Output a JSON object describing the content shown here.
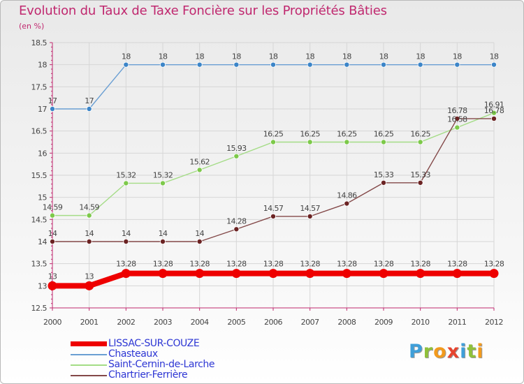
{
  "header": {
    "title": "Evolution du Taux de Taxe Foncière sur les Propriétés Bâties",
    "subtitle": "(en %)"
  },
  "brand": {
    "letters": [
      "P",
      "r",
      "o",
      "x",
      "i",
      "t",
      "i"
    ]
  },
  "chart_data": {
    "type": "line",
    "title": "Evolution du Taux de Taxe Foncière sur les Propriétés Bâties",
    "ylabel": "(en %)",
    "xlabel": "",
    "categories": [
      "2000",
      "2001",
      "2002",
      "2003",
      "2004",
      "2005",
      "2006",
      "2007",
      "2008",
      "2009",
      "2010",
      "2011",
      "2012"
    ],
    "ylim": [
      12.5,
      18.5
    ],
    "yticks": [
      "12.5",
      "13",
      "13.5",
      "14",
      "14.5",
      "15",
      "15.5",
      "16",
      "16.5",
      "17",
      "17.5",
      "18",
      "18.5"
    ],
    "legend_position": "bottom-left",
    "series": [
      {
        "name": "LISSAC-SUR-COUZE",
        "color": "#ee0000",
        "style": "thick",
        "values": [
          13,
          13,
          13.28,
          13.28,
          13.28,
          13.28,
          13.28,
          13.28,
          13.28,
          13.28,
          13.28,
          13.28,
          13.28
        ],
        "labels": [
          "13",
          "13",
          "13.28",
          "13.28",
          "13.28",
          "13.28",
          "13.28",
          "13.28",
          "13.28",
          "13.28",
          "13.28",
          "13.28",
          "13.28"
        ]
      },
      {
        "name": "Chasteaux",
        "color": "#6a9fd3",
        "point_color": "#3c85c8",
        "style": "thin",
        "values": [
          17,
          17,
          18,
          18,
          18,
          18,
          18,
          18,
          18,
          18,
          18,
          18,
          18
        ],
        "labels": [
          "17",
          "17",
          "18",
          "18",
          "18",
          "18",
          "18",
          "18",
          "18",
          "18",
          "18",
          "18",
          "18"
        ]
      },
      {
        "name": "Saint-Cernin-de-Larche",
        "color": "#a4dc86",
        "point_color": "#7dc94a",
        "style": "thin",
        "values": [
          14.59,
          14.59,
          15.32,
          15.32,
          15.62,
          15.93,
          16.25,
          16.25,
          16.25,
          16.25,
          16.25,
          16.58,
          16.91
        ],
        "labels": [
          "14.59",
          "14.59",
          "15.32",
          "15.32",
          "15.62",
          "15.93",
          "16.25",
          "16.25",
          "16.25",
          "16.25",
          "16.25",
          "16.58",
          "16.91"
        ]
      },
      {
        "name": "Chartrier-Ferrière",
        "color": "#834848",
        "point_color": "#6b2323",
        "style": "thin",
        "values": [
          14,
          14,
          14,
          14,
          14,
          14.28,
          14.57,
          14.57,
          14.86,
          15.33,
          15.33,
          16.78,
          16.78
        ],
        "labels": [
          "14",
          "14",
          "14",
          "14",
          "14",
          "14.28",
          "14.57",
          "14.57",
          "14.86",
          "15.33",
          "15.33",
          "16.78",
          "16.78"
        ]
      }
    ]
  }
}
